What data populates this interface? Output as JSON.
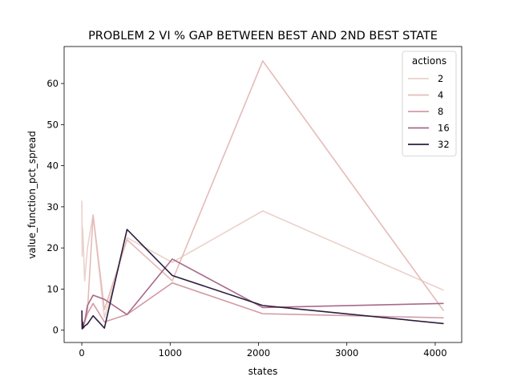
{
  "chart_data": {
    "type": "line",
    "title": "PROBLEM 2 VI % GAP BETWEEN BEST AND 2ND BEST STATE",
    "xlabel": "states",
    "ylabel": "value_function_pct_spread",
    "xlim": [
      -200,
      4300
    ],
    "ylim": [
      -3,
      69
    ],
    "xticks": [
      0,
      1000,
      2000,
      3000,
      4000
    ],
    "yticks": [
      0,
      10,
      20,
      30,
      40,
      50,
      60
    ],
    "grid": false,
    "legend": {
      "title": "actions",
      "placement": "top-right"
    },
    "series": [
      {
        "name": "2",
        "color": "#ebd1cb",
        "x": [
          1,
          4,
          8,
          16,
          32,
          64,
          128,
          256,
          512,
          1024,
          2048,
          4096
        ],
        "y": [
          31.5,
          18.0,
          25.0,
          22.0,
          12.0,
          20.0,
          28.0,
          3.0,
          22.5,
          16.5,
          29.0,
          9.7
        ]
      },
      {
        "name": "4",
        "color": "#e4bbb8",
        "x": [
          1,
          4,
          8,
          16,
          32,
          64,
          128,
          256,
          512,
          1024,
          2048,
          4096
        ],
        "y": [
          3.0,
          1.5,
          2.5,
          1.0,
          2.0,
          4.5,
          28.0,
          5.0,
          22.0,
          12.0,
          65.5,
          4.7
        ]
      },
      {
        "name": "8",
        "color": "#d29ba5",
        "x": [
          1,
          4,
          8,
          16,
          32,
          64,
          128,
          256,
          512,
          1024,
          2048,
          4096
        ],
        "y": [
          1.5,
          0.5,
          1.0,
          1.5,
          2.0,
          4.0,
          6.5,
          2.0,
          3.8,
          11.5,
          4.0,
          3.0
        ]
      },
      {
        "name": "16",
        "color": "#a86a8a",
        "x": [
          1,
          4,
          8,
          16,
          32,
          64,
          128,
          256,
          512,
          1024,
          2048,
          4096
        ],
        "y": [
          2.5,
          1.0,
          1.5,
          1.0,
          2.0,
          6.0,
          8.5,
          7.5,
          3.8,
          17.3,
          5.5,
          6.5
        ]
      },
      {
        "name": "32",
        "color": "#2d1e3e",
        "x": [
          1,
          4,
          8,
          16,
          32,
          64,
          128,
          256,
          512,
          1024,
          2048,
          4096
        ],
        "y": [
          4.8,
          0.3,
          2.0,
          0.5,
          1.0,
          1.5,
          3.5,
          0.5,
          24.5,
          13.3,
          6.0,
          1.6
        ]
      }
    ]
  }
}
